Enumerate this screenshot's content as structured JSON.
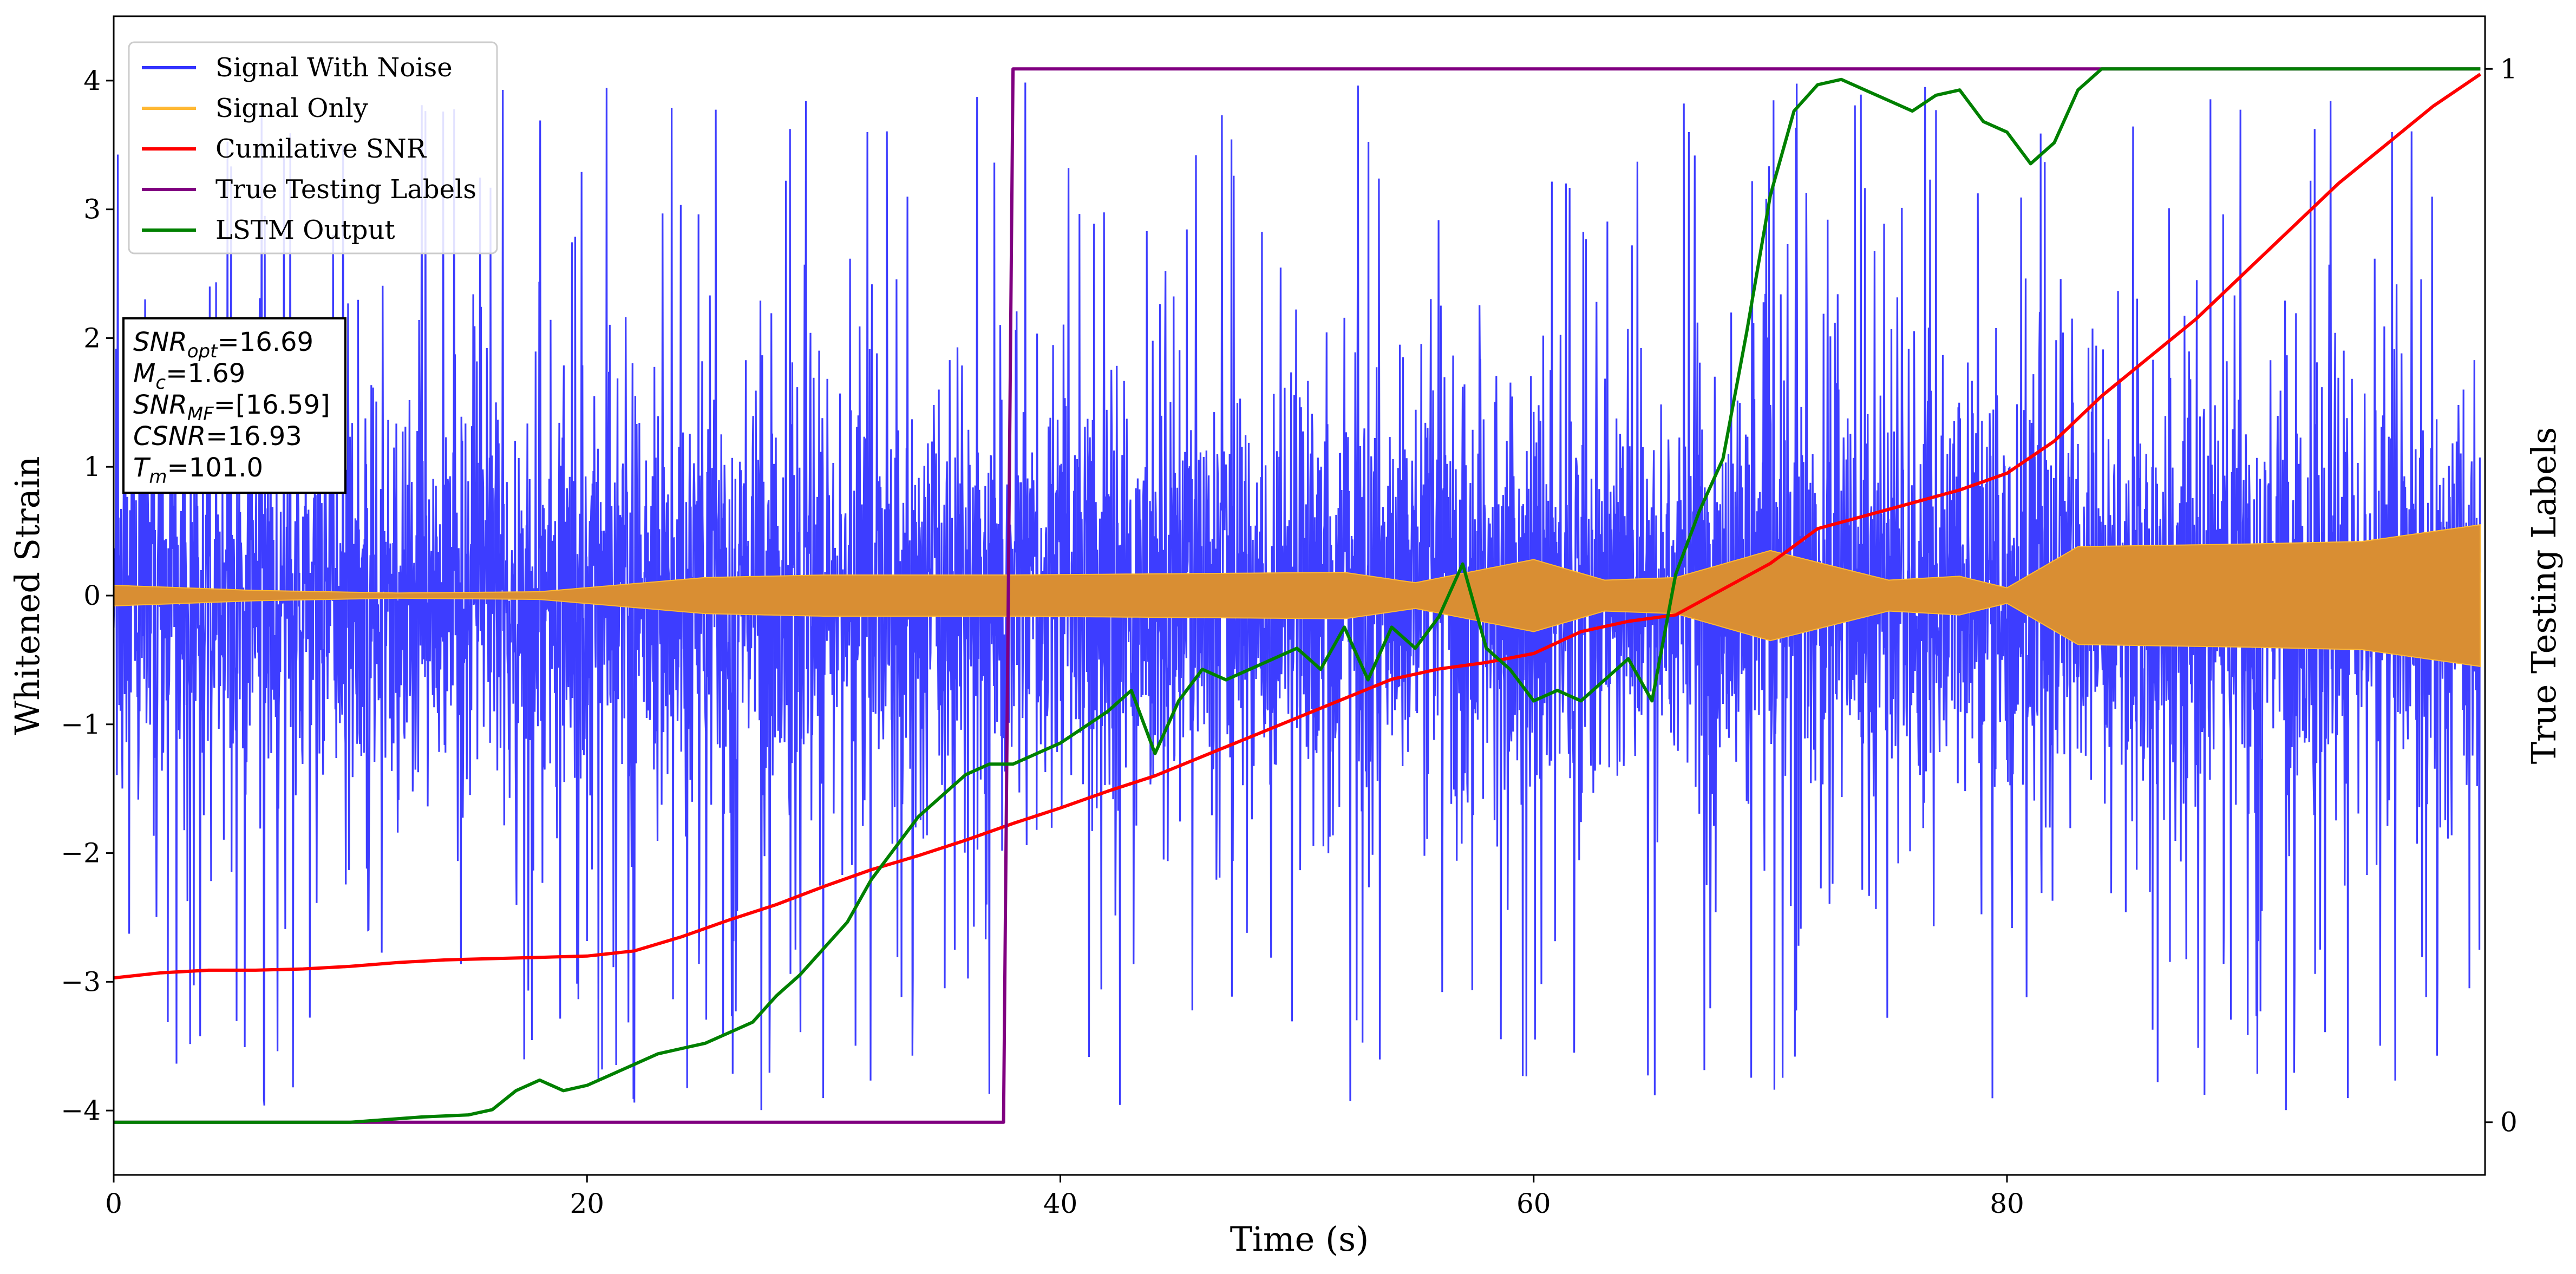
{
  "chart_data": {
    "type": "line",
    "xlabel": "Time (s)",
    "ylabel": "Whitened Strain",
    "y2label": "True Testing Labels",
    "xlim": [
      0,
      100.2
    ],
    "ylim": [
      -4.5,
      4.5
    ],
    "y2lim": [
      -0.05,
      1.05
    ],
    "xticks": [
      "0",
      "20",
      "40",
      "60",
      "80"
    ],
    "xtick_values": [
      0,
      20,
      40,
      60,
      80
    ],
    "yticks": [
      "−4",
      "−3",
      "−2",
      "−1",
      "0",
      "1",
      "2",
      "3",
      "4"
    ],
    "ytick_values": [
      -4,
      -3,
      -2,
      -1,
      0,
      1,
      2,
      3,
      4
    ],
    "y2ticks": [
      "0",
      "1"
    ],
    "y2tick_values": [
      0,
      1
    ],
    "grid": false,
    "legend_position": "top-left",
    "series": [
      {
        "name": "Signal With Noise",
        "color": "#3333ff",
        "axis": "left",
        "kind": "noise",
        "amplitude_envelope": [
          [
            0,
            1.3
          ],
          [
            100,
            1.3
          ]
        ],
        "spike_range": [
          -4.0,
          4.0
        ],
        "seed": 7
      },
      {
        "name": "Signal Only",
        "color": "#ffb833",
        "axis": "left",
        "kind": "envelope_band",
        "envelope": [
          [
            0,
            0.08
          ],
          [
            6,
            0.04
          ],
          [
            12,
            0.02
          ],
          [
            18,
            0.03
          ],
          [
            25,
            0.14
          ],
          [
            30,
            0.16
          ],
          [
            38,
            0.16
          ],
          [
            45,
            0.17
          ],
          [
            52,
            0.18
          ],
          [
            55,
            0.1
          ],
          [
            60,
            0.28
          ],
          [
            63,
            0.12
          ],
          [
            66,
            0.14
          ],
          [
            70,
            0.35
          ],
          [
            75,
            0.12
          ],
          [
            78,
            0.15
          ],
          [
            80,
            0.06
          ],
          [
            83,
            0.38
          ],
          [
            90,
            0.4
          ],
          [
            95,
            0.42
          ],
          [
            100,
            0.55
          ]
        ]
      },
      {
        "name": "Cumilative SNR",
        "color": "#ff0000",
        "axis": "left",
        "kind": "line",
        "x": [
          0,
          2,
          4,
          6,
          8,
          10,
          12,
          14,
          16,
          18,
          20,
          22,
          24,
          26,
          28,
          30,
          32,
          34,
          36,
          38,
          40,
          42,
          44,
          46,
          48,
          50,
          52,
          54,
          56,
          58,
          60,
          62,
          64,
          66,
          68,
          70,
          72,
          74,
          76,
          78,
          80,
          82,
          84,
          86,
          88,
          90,
          92,
          94,
          96,
          98,
          100
        ],
        "y": [
          -2.97,
          -2.93,
          -2.91,
          -2.91,
          -2.9,
          -2.88,
          -2.85,
          -2.83,
          -2.82,
          -2.81,
          -2.8,
          -2.76,
          -2.65,
          -2.52,
          -2.4,
          -2.26,
          -2.13,
          -2.02,
          -1.9,
          -1.77,
          -1.65,
          -1.52,
          -1.4,
          -1.25,
          -1.1,
          -0.95,
          -0.8,
          -0.65,
          -0.57,
          -0.52,
          -0.45,
          -0.28,
          -0.2,
          -0.15,
          0.05,
          0.25,
          0.52,
          0.62,
          0.72,
          0.82,
          0.95,
          1.2,
          1.55,
          1.85,
          2.15,
          2.5,
          2.85,
          3.2,
          3.5,
          3.8,
          4.05
        ]
      },
      {
        "name": "True Testing Labels",
        "color": "#800080",
        "axis": "right",
        "kind": "line",
        "x": [
          0,
          37.6,
          38.0,
          100
        ],
        "y": [
          0,
          0,
          1,
          1
        ]
      },
      {
        "name": "LSTM Output",
        "color": "#008000",
        "axis": "right",
        "kind": "line",
        "x": [
          0,
          5,
          10,
          13,
          15,
          16,
          17,
          18,
          19,
          20,
          21,
          22,
          23,
          24,
          25,
          26,
          27,
          28,
          29,
          30,
          31,
          32,
          33,
          34,
          35,
          36,
          37,
          38,
          39,
          40,
          41,
          42,
          43,
          44,
          45,
          46,
          47,
          48,
          49,
          50,
          51,
          52,
          53,
          54,
          55,
          56,
          57,
          58,
          59,
          60,
          61,
          62,
          63,
          64,
          65,
          66,
          67,
          68,
          69,
          70,
          71,
          72,
          73,
          74,
          75,
          76,
          77,
          78,
          79,
          80,
          81,
          82,
          83,
          84,
          85,
          86,
          88,
          90,
          95,
          100
        ],
        "y": [
          0,
          0,
          0,
          0.005,
          0.007,
          0.012,
          0.03,
          0.04,
          0.03,
          0.035,
          0.045,
          0.055,
          0.065,
          0.07,
          0.075,
          0.085,
          0.095,
          0.12,
          0.14,
          0.165,
          0.19,
          0.23,
          0.26,
          0.29,
          0.31,
          0.33,
          0.34,
          0.34,
          0.35,
          0.36,
          0.375,
          0.39,
          0.41,
          0.35,
          0.4,
          0.43,
          0.42,
          0.43,
          0.44,
          0.45,
          0.43,
          0.47,
          0.42,
          0.47,
          0.45,
          0.48,
          0.53,
          0.45,
          0.43,
          0.4,
          0.41,
          0.4,
          0.42,
          0.44,
          0.4,
          0.52,
          0.58,
          0.63,
          0.75,
          0.88,
          0.96,
          0.985,
          0.99,
          0.98,
          0.97,
          0.96,
          0.975,
          0.98,
          0.95,
          0.94,
          0.91,
          0.93,
          0.98,
          1.0,
          1.0,
          1.0,
          1.0,
          1.0,
          1.0,
          1.0
        ]
      }
    ],
    "info_box": {
      "lines": [
        {
          "label": "SNR",
          "sub": "opt",
          "value": "=16.69"
        },
        {
          "label": "M",
          "sub": "c",
          "value": "=1.69"
        },
        {
          "label": "SNR",
          "sub": "MF",
          "value": "=[16.59]"
        },
        {
          "label": "CSNR",
          "sub": "",
          "value": "=16.93"
        },
        {
          "label": "T",
          "sub": "m",
          "value": "=101.0"
        }
      ]
    }
  }
}
